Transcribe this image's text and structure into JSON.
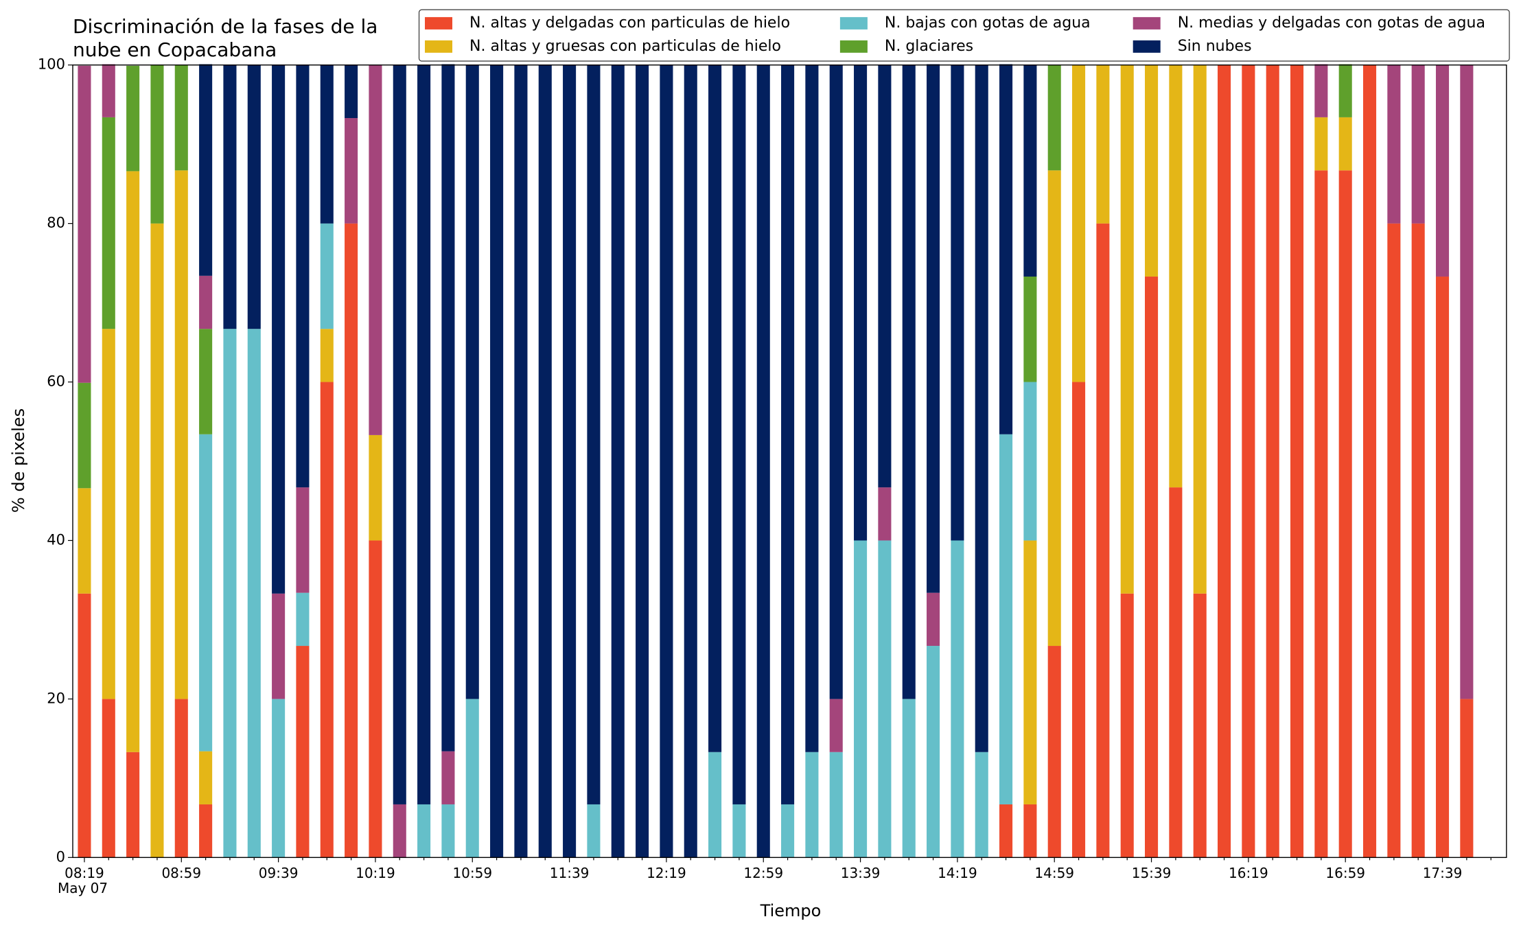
{
  "chart_data": {
    "type": "stacked_bar",
    "title": "Discriminación de la fases de la\nnube en Copacabana",
    "x_label": "Tiempo",
    "y_label": "% de pixeles",
    "x_date_label": "May 07",
    "categories": [
      "08:19",
      null,
      null,
      null,
      "08:59",
      null,
      null,
      null,
      "09:39",
      null,
      null,
      null,
      "10:19",
      null,
      null,
      null,
      "10:59",
      null,
      null,
      null,
      "11:39",
      null,
      null,
      null,
      "12:19",
      null,
      null,
      null,
      "12:59",
      null,
      null,
      null,
      "13:39",
      null,
      null,
      null,
      "14:19",
      null,
      null,
      null,
      "14:59",
      null,
      null,
      null,
      "15:39",
      null,
      null,
      null,
      "16:19",
      null,
      null,
      null,
      "16:59",
      null,
      null,
      null,
      "17:39",
      null
    ],
    "series": [
      {
        "name": "N. altas y delgadas con particulas de hielo",
        "color": "#ee4a2c",
        "values": [
          33.3,
          20,
          13.3,
          0,
          20,
          6.7,
          0,
          0,
          0,
          26.7,
          60,
          80,
          40,
          0,
          0,
          0,
          0,
          0,
          0,
          0,
          0,
          0,
          0,
          0,
          0,
          0,
          0,
          0,
          0,
          0,
          0,
          0,
          0,
          0,
          0,
          0,
          0,
          0,
          6.7,
          6.7,
          26.7,
          60,
          80,
          33.3,
          73.3,
          46.7,
          33.3,
          100,
          100,
          100,
          100,
          86.7,
          86.7,
          100,
          80,
          80,
          73.3,
          20
        ]
      },
      {
        "name": "N. altas y gruesas con particulas de hielo",
        "color": "#e4b617",
        "values": [
          13.3,
          46.7,
          73.3,
          80,
          66.7,
          6.7,
          0,
          0,
          0,
          0,
          6.7,
          0,
          13.3,
          0,
          0,
          0,
          0,
          0,
          0,
          0,
          0,
          0,
          0,
          0,
          0,
          0,
          0,
          0,
          0,
          0,
          0,
          0,
          0,
          0,
          0,
          0,
          0,
          0,
          0,
          33.3,
          60,
          40,
          20,
          66.7,
          26.7,
          53.3,
          66.7,
          0,
          0,
          0,
          0,
          6.7,
          6.7,
          0,
          0,
          0,
          0,
          0
        ]
      },
      {
        "name": "N. bajas con gotas de agua",
        "color": "#65bfc9",
        "values": [
          0,
          0,
          0,
          0,
          0,
          40,
          66.7,
          66.7,
          20,
          6.7,
          13.3,
          0,
          0,
          0,
          6.7,
          6.7,
          20,
          0,
          0,
          0,
          0,
          6.7,
          0,
          0,
          0,
          0,
          13.3,
          6.7,
          0,
          6.7,
          13.3,
          13.3,
          40,
          40,
          20,
          26.7,
          40,
          13.3,
          46.7,
          20,
          0,
          0,
          0,
          0,
          0,
          0,
          0,
          0,
          0,
          0,
          0,
          0,
          0,
          0,
          0,
          0,
          0,
          0
        ]
      },
      {
        "name": "N. glaciares",
        "color": "#5fa02c",
        "values": [
          13.3,
          26.7,
          13.3,
          20,
          13.3,
          13.3,
          0,
          0,
          0,
          0,
          0,
          0,
          0,
          0,
          0,
          0,
          0,
          0,
          0,
          0,
          0,
          0,
          0,
          0,
          0,
          0,
          0,
          0,
          0,
          0,
          0,
          0,
          0,
          0,
          0,
          0,
          0,
          0,
          0,
          13.3,
          13.3,
          0,
          0,
          0,
          0,
          0,
          0,
          0,
          0,
          0,
          0,
          0,
          6.7,
          0,
          0,
          0,
          0,
          0
        ]
      },
      {
        "name": "N. medias y delgadas con gotas de agua",
        "color": "#a4457b",
        "values": [
          40,
          6.7,
          0,
          0,
          0,
          6.7,
          0,
          0,
          13.3,
          13.3,
          0,
          13.3,
          46.7,
          6.7,
          0,
          6.7,
          0,
          0,
          0,
          0,
          0,
          0,
          0,
          0,
          0,
          0,
          0,
          0,
          0,
          0,
          0,
          6.7,
          0,
          6.7,
          0,
          6.7,
          0,
          0,
          0,
          0,
          0,
          0,
          0,
          0,
          0,
          0,
          0,
          0,
          0,
          0,
          0,
          6.7,
          0,
          0,
          20,
          20,
          26.7,
          80
        ]
      },
      {
        "name": "Sin nubes",
        "color": "#03205e",
        "values": [
          0,
          0,
          0,
          0,
          0,
          26.7,
          33.3,
          33.3,
          66.7,
          53.3,
          20,
          6.7,
          0,
          93.3,
          93.3,
          86.7,
          80,
          100,
          100,
          100,
          100,
          93.3,
          100,
          100,
          100,
          100,
          86.7,
          93.3,
          100,
          93.3,
          86.7,
          80,
          60,
          53.3,
          80,
          66.7,
          60,
          86.7,
          46.7,
          26.7,
          0,
          0,
          0,
          0,
          0,
          0,
          0,
          0,
          0,
          0,
          0,
          0,
          0,
          0,
          0,
          0,
          0,
          0
        ]
      }
    ],
    "ylim": [
      0,
      100
    ],
    "yticks": [
      0,
      20,
      40,
      60,
      80,
      100
    ],
    "legend": "upper right",
    "legend_columns": 3
  }
}
